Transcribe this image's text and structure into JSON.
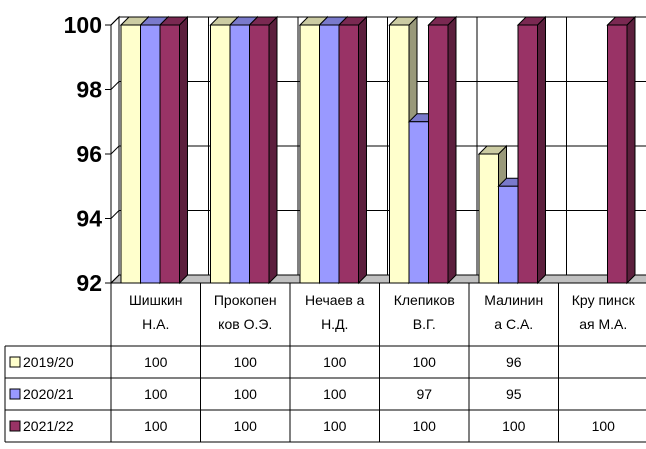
{
  "chart_data": {
    "type": "bar",
    "categories": [
      [
        "Шишкин",
        "Н.А."
      ],
      [
        "Прокопен",
        "ков О.Э."
      ],
      [
        "Нечаев а",
        "Н.Д."
      ],
      [
        "Клепиков",
        "В.Г."
      ],
      [
        "Малинин",
        "а С.А."
      ],
      [
        "Кру пинск",
        "ая М.А."
      ]
    ],
    "series": [
      {
        "name": "2019/20",
        "color": "#ffffcc",
        "values": [
          100,
          100,
          100,
          100,
          96,
          null
        ],
        "table": [
          "100",
          "100",
          "100",
          "100",
          "96",
          ""
        ]
      },
      {
        "name": "2020/21",
        "color": "#9999ff",
        "values": [
          100,
          100,
          100,
          97,
          95,
          null
        ],
        "table": [
          "100",
          "100",
          "100",
          "97",
          "95",
          ""
        ]
      },
      {
        "name": "2021/22",
        "color": "#993366",
        "values": [
          100,
          100,
          100,
          100,
          100,
          100
        ],
        "table": [
          "100",
          "100",
          "100",
          "100",
          "100",
          "100"
        ]
      }
    ],
    "yticks": [
      92,
      94,
      96,
      98,
      100
    ],
    "ylim": [
      92,
      100
    ],
    "grid": true,
    "legend": "data table"
  }
}
